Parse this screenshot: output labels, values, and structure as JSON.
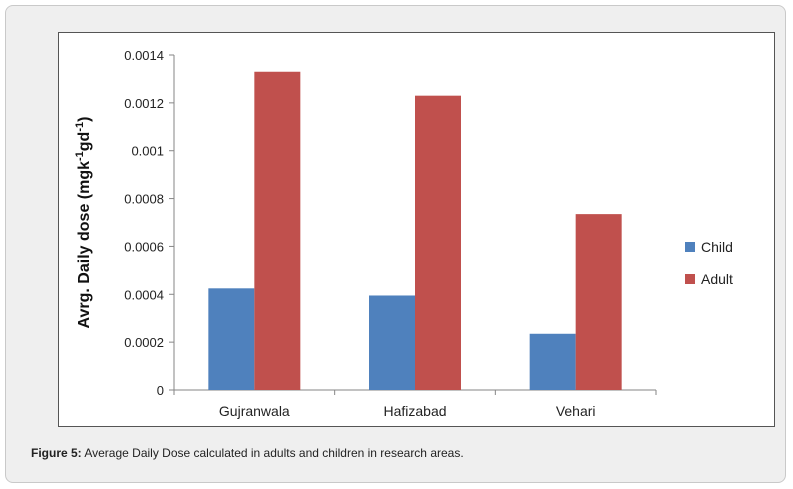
{
  "chart_data": {
    "type": "bar",
    "categories": [
      "Gujranwala",
      "Hafizabad",
      "Vehari"
    ],
    "series": [
      {
        "name": "Child",
        "values": [
          0.000425,
          0.000395,
          0.000235
        ],
        "color": "#4f81bd"
      },
      {
        "name": "Adult",
        "values": [
          0.00133,
          0.00123,
          0.000735
        ],
        "color": "#c0504d"
      }
    ],
    "ylabel_main": "Avrg. Daily dose (mgk",
    "ylabel_sup1": "-1",
    "ylabel_mid": "gd",
    "ylabel_sup2": "-1",
    "ylabel_end": ")",
    "ylim": [
      0,
      0.0014
    ],
    "yticks": [
      "0",
      "0.0002",
      "0.0004",
      "0.0006",
      "0.0008",
      "0.001",
      "0.0012",
      "0.0014"
    ],
    "grid": false,
    "legend_position": "right"
  },
  "caption": {
    "label": "Figure 5:",
    "text": " Average Daily Dose calculated in adults and children in research areas."
  }
}
